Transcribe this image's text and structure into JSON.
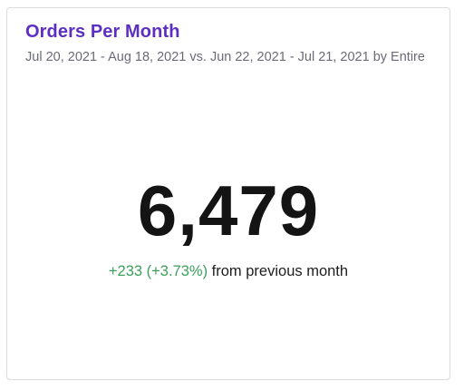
{
  "card": {
    "title": "Orders Per Month",
    "subtitle": "Jul 20, 2021 - Aug 18, 2021 vs. Jun 22, 2021 - Jul 21, 2021 by Entire...",
    "metric_value": "6,479",
    "delta_text": "+233 (+3.73%)",
    "comparison_suffix": "from previous month"
  },
  "colors": {
    "title": "#5c2fc2",
    "subtitle": "#6b6b78",
    "value": "#141414",
    "positive_delta": "#3aa05a"
  }
}
